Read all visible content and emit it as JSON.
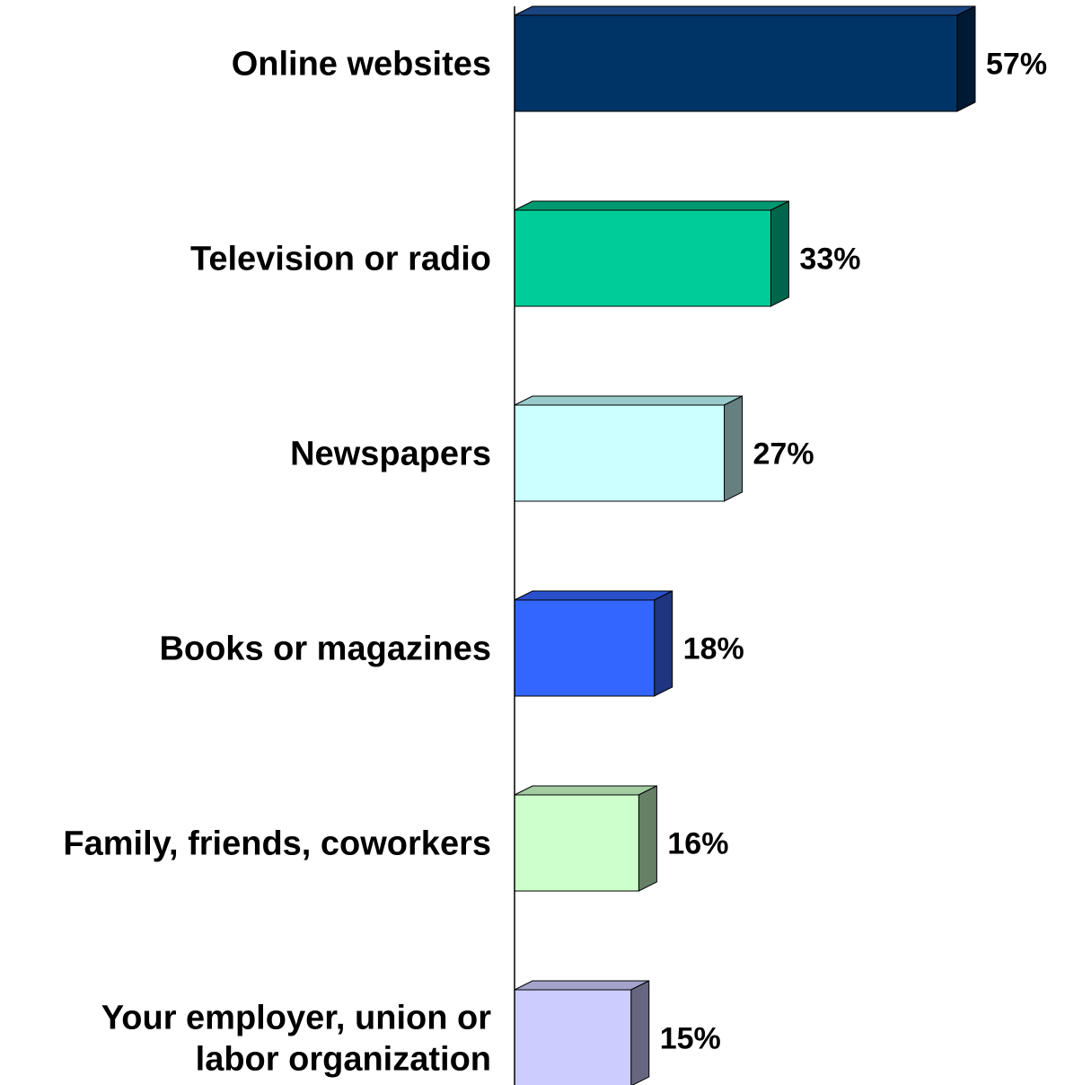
{
  "chart_data": {
    "type": "bar",
    "orientation": "horizontal",
    "style": "3d",
    "categories": [
      [
        "Online websites"
      ],
      [
        "Television or radio"
      ],
      [
        "Newspapers"
      ],
      [
        "Books or magazines"
      ],
      [
        "Family, friends, coworkers"
      ],
      [
        "Your employer, union or",
        "labor organization"
      ]
    ],
    "values": [
      57,
      33,
      27,
      18,
      16,
      15
    ],
    "value_labels": [
      "57%",
      "33%",
      "27%",
      "18%",
      "16%",
      "15%"
    ],
    "unit": "%",
    "colors": [
      {
        "front": "#003366",
        "top": "#1a4480",
        "side": "#001a33"
      },
      {
        "front": "#00cc99",
        "top": "#009970",
        "side": "#00664b"
      },
      {
        "front": "#ccffff",
        "top": "#99cccc",
        "side": "#668080"
      },
      {
        "front": "#3366ff",
        "top": "#2a50cc",
        "side": "#1f3580"
      },
      {
        "front": "#ccffcc",
        "top": "#a3cca3",
        "side": "#668066"
      },
      {
        "front": "#ccccff",
        "top": "#a3a3cc",
        "side": "#666680"
      }
    ],
    "title": "",
    "xlabel": "",
    "ylabel": "",
    "grid": false,
    "legend": "none"
  }
}
